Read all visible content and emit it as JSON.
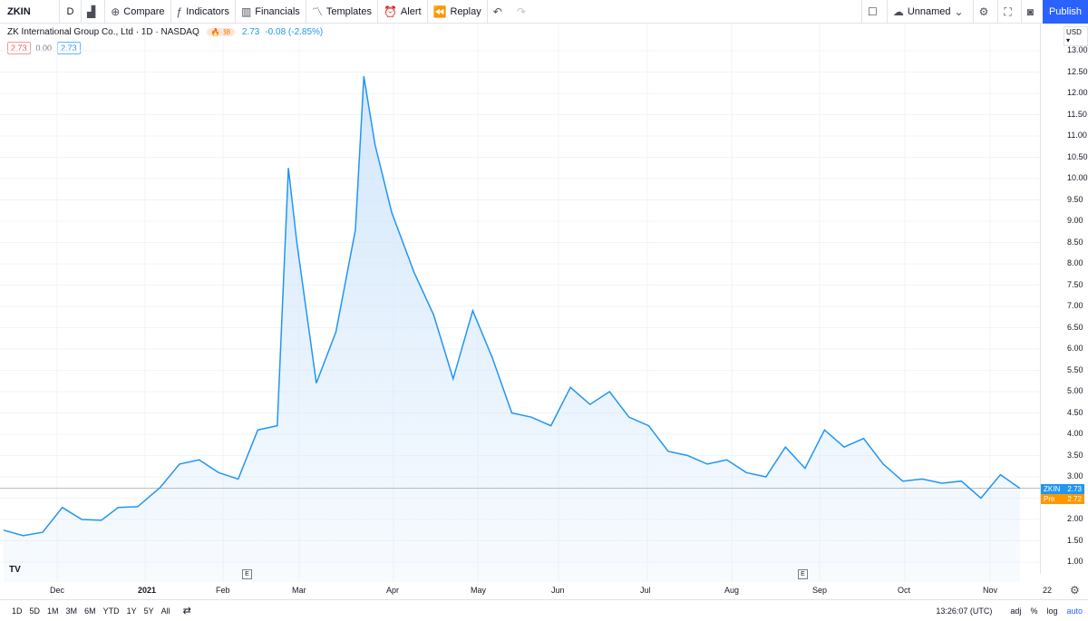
{
  "toolbar": {
    "symbol": "ZKIN",
    "interval": "D",
    "compare": "Compare",
    "indicators": "Indicators",
    "financials": "Financials",
    "templates": "Templates",
    "alert": "Alert",
    "replay": "Replay",
    "layout_name": "Unnamed",
    "publish": "Publish"
  },
  "legend": {
    "title": "ZK International Group Co., Ltd · 1D · NASDAQ",
    "hot_badge": "38",
    "last": "2.73",
    "change": "-0.08 (-2.85%)",
    "val_left": "2.73",
    "val_mid": "0.00",
    "val_right": "2.73"
  },
  "price_axis": {
    "currency": "USD",
    "ticks": [
      "13.00",
      "12.50",
      "12.00",
      "11.50",
      "11.00",
      "10.50",
      "10.00",
      "9.50",
      "9.00",
      "8.50",
      "8.00",
      "7.50",
      "7.00",
      "6.50",
      "6.00",
      "5.50",
      "5.00",
      "4.50",
      "4.00",
      "3.50",
      "3.00",
      "2.50",
      "2.00",
      "1.50",
      "1.00"
    ],
    "last_tag_symbol": "ZKIN",
    "last_tag_value": "2.73",
    "pre_tag_label": "Pre",
    "pre_tag_value": "2.72"
  },
  "time_axis": {
    "ticks": [
      {
        "label": "Dec",
        "bold": false
      },
      {
        "label": "2021",
        "bold": true
      },
      {
        "label": "Feb",
        "bold": false
      },
      {
        "label": "Mar",
        "bold": false
      },
      {
        "label": "Apr",
        "bold": false
      },
      {
        "label": "May",
        "bold": false
      },
      {
        "label": "Jun",
        "bold": false
      },
      {
        "label": "Jul",
        "bold": false
      },
      {
        "label": "Aug",
        "bold": false
      },
      {
        "label": "Sep",
        "bold": false
      },
      {
        "label": "Oct",
        "bold": false
      },
      {
        "label": "Nov",
        "bold": false
      },
      {
        "label": "22",
        "bold": false
      }
    ],
    "earnings_marker": "E"
  },
  "bottombar": {
    "ranges": [
      "1D",
      "5D",
      "1M",
      "3M",
      "6M",
      "YTD",
      "1Y",
      "5Y",
      "All"
    ],
    "clock": "13:26:07 (UTC)",
    "adj": "adj",
    "percent": "%",
    "log": "log",
    "auto": "auto"
  },
  "colors": {
    "line": "#2196f3",
    "area_top": "#cfe5fb",
    "grid": "#f0f3fa",
    "accent": "#2962ff"
  },
  "chart_data": {
    "type": "area",
    "x": [
      "2020-11-13",
      "2020-11-20",
      "2020-11-27",
      "2020-12-04",
      "2020-12-11",
      "2020-12-18",
      "2020-12-24",
      "2020-12-31",
      "2021-01-08",
      "2021-01-15",
      "2021-01-22",
      "2021-01-29",
      "2021-02-05",
      "2021-02-12",
      "2021-02-19",
      "2021-02-23",
      "2021-02-26",
      "2021-03-05",
      "2021-03-12",
      "2021-03-19",
      "2021-03-22",
      "2021-03-26",
      "2021-04-01",
      "2021-04-09",
      "2021-04-16",
      "2021-04-23",
      "2021-04-30",
      "2021-05-07",
      "2021-05-14",
      "2021-05-21",
      "2021-05-28",
      "2021-06-04",
      "2021-06-11",
      "2021-06-18",
      "2021-06-25",
      "2021-07-02",
      "2021-07-09",
      "2021-07-16",
      "2021-07-23",
      "2021-07-30",
      "2021-08-06",
      "2021-08-13",
      "2021-08-20",
      "2021-08-27",
      "2021-09-03",
      "2021-09-10",
      "2021-09-17",
      "2021-09-24",
      "2021-10-01",
      "2021-10-08",
      "2021-10-15",
      "2021-10-22",
      "2021-10-29",
      "2021-11-05",
      "2021-11-12"
    ],
    "values": [
      1.75,
      1.62,
      1.7,
      2.28,
      2.0,
      1.98,
      2.28,
      2.3,
      2.75,
      3.3,
      3.4,
      3.1,
      2.95,
      4.1,
      4.2,
      10.25,
      8.5,
      5.2,
      6.4,
      8.8,
      12.4,
      10.8,
      9.2,
      7.8,
      6.8,
      5.3,
      6.9,
      5.8,
      4.5,
      4.4,
      4.2,
      5.1,
      4.7,
      5.0,
      4.4,
      4.2,
      3.6,
      3.5,
      3.3,
      3.4,
      3.1,
      3.0,
      3.7,
      3.2,
      4.1,
      3.7,
      3.9,
      3.3,
      2.9,
      2.95,
      2.85,
      2.9,
      2.5,
      3.05,
      2.73
    ],
    "ylim": [
      0.6,
      13.3
    ],
    "last_value": 2.73,
    "grid": true,
    "title": "ZK International Group Co., Ltd · 1D · NASDAQ"
  }
}
